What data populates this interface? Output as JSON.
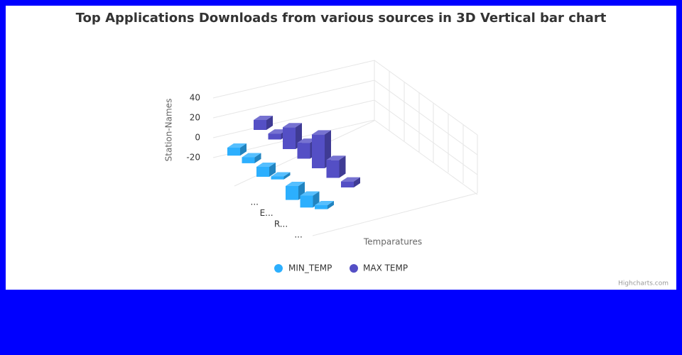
{
  "chart_data": {
    "type": "column3d",
    "title": "Top Applications Downloads from various sources in 3D Vertical bar chart",
    "y_axis_title": "Station-Names",
    "x_axis_title": "Temparatures",
    "categories": [
      "...",
      null,
      "E...",
      null,
      "R...",
      null,
      "..."
    ],
    "series": [
      {
        "name": "MIN_TEMP",
        "color": "#2caffe",
        "values": [
          -8,
          -6,
          -10,
          -3,
          -14,
          -12,
          -4
        ]
      },
      {
        "name": "MAX TEMP",
        "color": "#544fc5",
        "values": [
          10,
          6,
          22,
          16,
          34,
          18,
          6
        ]
      }
    ],
    "ylim": [
      -20,
      40
    ],
    "yticks": [
      -20,
      0,
      20,
      40
    ],
    "credits": "Highcharts.com"
  }
}
